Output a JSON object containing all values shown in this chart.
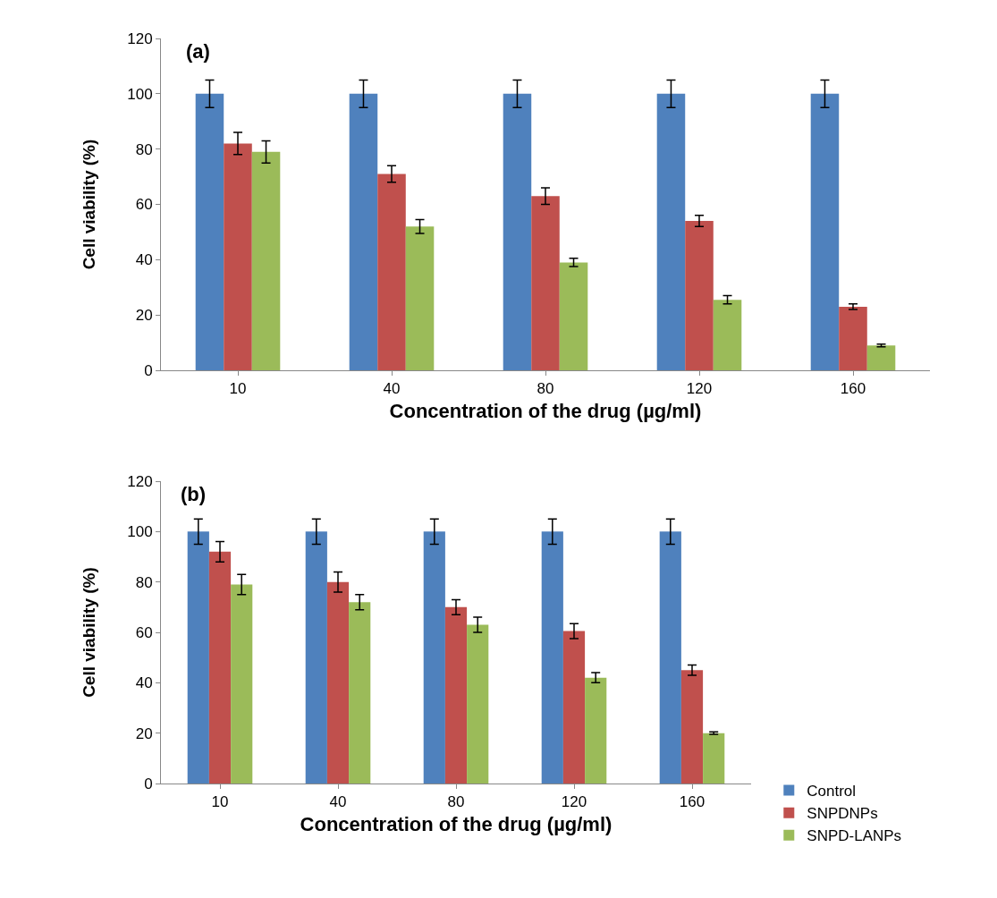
{
  "chart_data": [
    {
      "type": "bar",
      "title": "(a)",
      "xlabel": "Concentration of the drug (µg/ml)",
      "ylabel": "Cell viability (%)",
      "categories": [
        "10",
        "40",
        "80",
        "120",
        "160"
      ],
      "ylim": [
        0,
        120
      ],
      "yticks": [
        0,
        20,
        40,
        60,
        80,
        100,
        120
      ],
      "grid": false,
      "legend": false,
      "series": [
        {
          "color": "#4f81bd",
          "values": [
            100,
            100,
            100,
            100,
            100
          ],
          "errors": [
            5,
            5,
            5,
            5,
            5
          ]
        },
        {
          "color": "#c0504d",
          "values": [
            82,
            71,
            63,
            54,
            23
          ],
          "errors": [
            4,
            3,
            3,
            2,
            1
          ]
        },
        {
          "color": "#9bbb59",
          "values": [
            79,
            52,
            39,
            25.5,
            9
          ],
          "errors": [
            4,
            2.5,
            1.5,
            1.5,
            0.5
          ]
        }
      ]
    },
    {
      "type": "bar",
      "title": "(b)",
      "xlabel": "Concentration of the drug (µg/ml)",
      "ylabel": "Cell viability (%)",
      "categories": [
        "10",
        "40",
        "80",
        "120",
        "160"
      ],
      "ylim": [
        0,
        120
      ],
      "yticks": [
        0,
        20,
        40,
        60,
        80,
        100,
        120
      ],
      "grid": false,
      "legend": "bottom right",
      "series": [
        {
          "name": "Control",
          "color": "#4f81bd",
          "values": [
            100,
            100,
            100,
            100,
            100
          ],
          "errors": [
            5,
            5,
            5,
            5,
            5
          ]
        },
        {
          "name": "SNPDNPs",
          "color": "#c0504d",
          "values": [
            92,
            80,
            70,
            60.5,
            45
          ],
          "errors": [
            4,
            4,
            3,
            3,
            2
          ]
        },
        {
          "name": "SNPD-LANPs",
          "color": "#9bbb59",
          "values": [
            79,
            72,
            63,
            42,
            20
          ],
          "errors": [
            4,
            3,
            3,
            2,
            0.5
          ]
        }
      ]
    }
  ]
}
